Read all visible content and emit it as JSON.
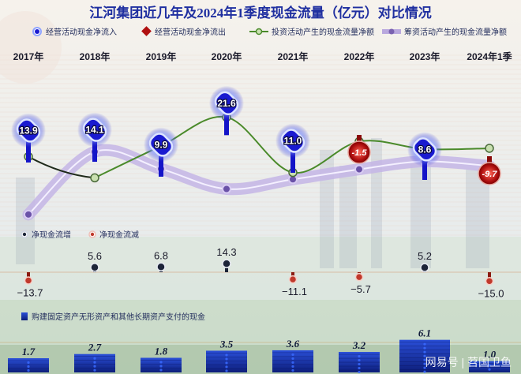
{
  "title": "江河集团近几年及2024年1季度现金流量（亿元）对比情况",
  "legend": {
    "op_in": "经营活动现金净流入",
    "op_out": "经营活动现金净流出",
    "invest": "投资活动产生的现金流量净额",
    "finance": "筹资活动产生的现金流量净额",
    "net_up": "净现金流增",
    "net_down": "净现金流减",
    "capex": "购建固定资产无形资产和其他长期资产支付的现金"
  },
  "colors": {
    "op_in": "#1a1ad0",
    "op_out": "#b01010",
    "invest": "#4a8a2a",
    "finance": "#9b86c8",
    "net_up": "#1c2438",
    "net_down": "#c0392b",
    "capex": "#142a8a",
    "title": "#1f2fa0"
  },
  "watermark": "网易号 | 苕国卫鱼",
  "chart_data": {
    "type": "line",
    "title": "江河集团近几年及2024年1季度现金流量（亿元）对比情况",
    "categories": [
      "2017年",
      "2018年",
      "2019年",
      "2020年",
      "2021年",
      "2022年",
      "2023年",
      "2024年1季"
    ],
    "series": [
      {
        "name": "经营活动现金净流入/流出",
        "values": [
          13.9,
          14.1,
          9.9,
          21.6,
          11.0,
          -1.5,
          8.6,
          -9.7
        ],
        "labels": [
          "13.9",
          "14.1",
          "9.9",
          "21.6",
          "11.0",
          "-1.5",
          "8.6",
          "-9.7"
        ]
      },
      {
        "name": "投资活动产生的现金流量净额",
        "values": [
          2.5,
          -0.3,
          3.9,
          7.7,
          0.4,
          4.5,
          3.5,
          3.6
        ]
      },
      {
        "name": "筹资活动产生的现金流量净额",
        "values": [
          -10.4,
          4.6,
          0.5,
          -4.3,
          -2.0,
          0.4,
          2.3,
          1.2
        ]
      },
      {
        "name": "净现金流",
        "values": [
          -13.7,
          5.6,
          6.8,
          14.3,
          -11.1,
          -5.7,
          5.2,
          -15.0
        ],
        "labels": [
          "−13.7",
          "5.6",
          "6.8",
          "14.3",
          "−11.1",
          "−5.7",
          "5.2",
          "−15.0"
        ]
      },
      {
        "name": "购建固定资产无形资产和其他长期资产支付的现金",
        "values": [
          1.7,
          2.7,
          1.8,
          3.5,
          3.6,
          3.2,
          6.1,
          1.0
        ],
        "labels": [
          "1.7",
          "2.7",
          "1.8",
          "3.5",
          "3.6",
          "3.2",
          "6.1",
          "1.0"
        ]
      }
    ],
    "ylabel": "亿元"
  }
}
